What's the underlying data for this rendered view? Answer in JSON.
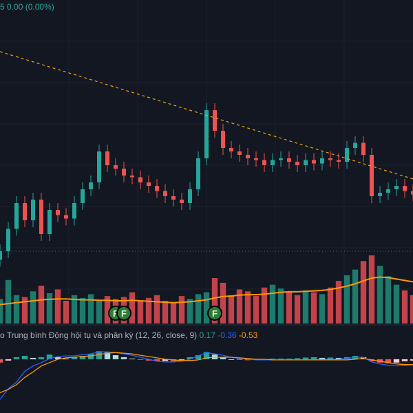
{
  "header": {
    "change_prefix": "5",
    "change_value": "0.00",
    "change_percent": "(0.00%)"
  },
  "macd": {
    "label": "o Trung bình Động hội tụ và phân kỳ (12, 26, close, 9)",
    "histogram": "0.17",
    "macd": "-0.36",
    "signal": "-0.53"
  },
  "colors": {
    "background": "#131722",
    "up": "#26a69a",
    "down": "#ef5350",
    "volume_up": "#1d7a6c",
    "volume_down": "#c2434a",
    "trendline": "#f7a600",
    "volume_ma": "#ff9800",
    "macd_line": "#2962ff",
    "signal_line": "#ff9800",
    "grid": "#1e222d",
    "marker": "#2e7d32"
  },
  "chart_data": [
    {
      "type": "candlestick",
      "x": [
        0,
        2,
        4,
        6,
        8,
        10,
        12,
        14,
        16,
        18,
        20,
        22,
        24,
        26,
        28,
        30,
        32,
        34,
        36,
        38,
        40,
        42,
        44,
        46,
        48,
        50,
        52,
        54,
        56,
        58,
        60,
        62,
        64,
        66,
        68,
        70,
        72,
        74,
        76,
        78,
        80,
        82,
        84,
        86,
        88,
        90,
        92,
        94,
        96,
        98,
        100
      ],
      "close": [
        0.42,
        0.55,
        0.7,
        0.6,
        0.72,
        0.52,
        0.66,
        0.63,
        0.61,
        0.7,
        0.78,
        0.82,
        1.0,
        0.92,
        0.9,
        0.86,
        0.85,
        0.82,
        0.8,
        0.77,
        0.74,
        0.72,
        0.7,
        0.78,
        0.96,
        1.24,
        1.12,
        1.02,
        1.0,
        0.98,
        0.96,
        0.95,
        0.92,
        0.95,
        0.96,
        0.94,
        0.92,
        0.95,
        0.93,
        0.96,
        0.95,
        0.94,
        1.02,
        1.05,
        0.98,
        0.74,
        0.76,
        0.78,
        0.8,
        0.77,
        0.75
      ],
      "trendline": {
        "start": [
          0,
          1.58
        ],
        "end": [
          100,
          0.84
        ]
      },
      "reference_line": 0.42
    },
    {
      "type": "bar",
      "series_label": "volume",
      "values": [
        2.6,
        4.6,
        3.0,
        2.8,
        3.4,
        4.0,
        3.2,
        3.6,
        2.4,
        3.0,
        2.7,
        3.1,
        2.5,
        2.9,
        2.6,
        2.8,
        3.3,
        2.4,
        2.7,
        3.0,
        2.4,
        2.2,
        2.9,
        2.6,
        3.1,
        3.3,
        4.8,
        4.3,
        3.0,
        3.6,
        3.4,
        2.9,
        3.8,
        4.1,
        3.7,
        3.4,
        3.0,
        3.5,
        3.3,
        3.1,
        3.8,
        4.5,
        5.1,
        5.7,
        6.6,
        7.2,
        6.1,
        5.0,
        4.1,
        3.5,
        3.0
      ],
      "moving_average": [
        2.0,
        2.1,
        2.2,
        2.3,
        2.4,
        2.5,
        2.55,
        2.6,
        2.6,
        2.55,
        2.5,
        2.5,
        2.45,
        2.45,
        2.4,
        2.4,
        2.45,
        2.4,
        2.35,
        2.3,
        2.25,
        2.2,
        2.25,
        2.3,
        2.4,
        2.5,
        2.7,
        2.85,
        2.9,
        3.0,
        3.05,
        3.05,
        3.1,
        3.2,
        3.3,
        3.35,
        3.35,
        3.4,
        3.45,
        3.5,
        3.6,
        3.75,
        3.95,
        4.2,
        4.5,
        4.8,
        4.9,
        4.85,
        4.7,
        4.55,
        4.4
      ],
      "events": [
        28,
        30,
        52
      ]
    },
    {
      "type": "line",
      "series_label": "macd",
      "histogram": [
        -0.1,
        -0.04,
        0.06,
        0.1,
        0.04,
        0.06,
        0.14,
        0.06,
        0.02,
        0.06,
        0.1,
        0.16,
        0.24,
        0.2,
        0.12,
        0.06,
        0.02,
        -0.02,
        -0.04,
        -0.06,
        -0.05,
        -0.06,
        -0.02,
        0.06,
        0.12,
        0.22,
        0.14,
        0.06,
        0.0,
        -0.02,
        -0.03,
        -0.02,
        0.0,
        0.02,
        0.02,
        0.02,
        0.03,
        0.05,
        0.06,
        0.04,
        0.05,
        0.04,
        0.06,
        0.1,
        0.06,
        -0.06,
        -0.1,
        -0.12,
        -0.1,
        -0.06,
        -0.04
      ],
      "macd": [
        -1.2,
        -0.88,
        -0.68,
        -0.36,
        -0.2,
        -0.1,
        0.02,
        0.08,
        0.1,
        0.1,
        0.14,
        0.16,
        0.22,
        0.22,
        0.2,
        0.16,
        0.12,
        0.06,
        0.0,
        -0.06,
        -0.08,
        -0.08,
        -0.06,
        0.0,
        0.1,
        0.2,
        0.16,
        0.12,
        0.06,
        0.02,
        0.0,
        -0.02,
        -0.02,
        -0.02,
        -0.02,
        -0.02,
        -0.02,
        -0.02,
        -0.02,
        -0.01,
        0.0,
        0.0,
        0.02,
        0.06,
        0.06,
        -0.08,
        -0.14,
        -0.18,
        -0.2,
        -0.18,
        -0.16
      ],
      "signal": [
        -1.0,
        -0.9,
        -0.76,
        -0.54,
        -0.38,
        -0.2,
        -0.1,
        0.0,
        0.04,
        0.06,
        0.08,
        0.1,
        0.14,
        0.18,
        0.2,
        0.18,
        0.16,
        0.12,
        0.08,
        0.04,
        0.0,
        -0.02,
        -0.04,
        -0.04,
        -0.02,
        0.04,
        0.06,
        0.06,
        0.06,
        0.04,
        0.02,
        0.0,
        0.0,
        -0.02,
        -0.02,
        -0.02,
        -0.02,
        -0.02,
        -0.02,
        -0.02,
        -0.02,
        -0.02,
        -0.02,
        0.0,
        0.02,
        -0.02,
        -0.06,
        -0.1,
        -0.14,
        -0.16,
        -0.16
      ]
    }
  ]
}
